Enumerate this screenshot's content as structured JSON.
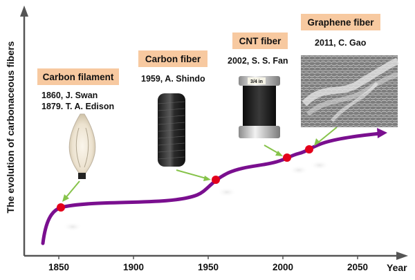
{
  "y_axis_title": "The evolution of carbonaceous fibers",
  "x_axis_title": "Year",
  "x_ticks": [
    "1850",
    "1900",
    "1950",
    "2000",
    "2050"
  ],
  "milestones": [
    {
      "box_label": "Carbon filament",
      "lines": [
        "1860, J. Swan",
        "1879. T. A. Edison"
      ],
      "image": "light-bulb"
    },
    {
      "box_label": "Carbon fiber",
      "lines": [
        "1959, A. Shindo"
      ],
      "image": "carbon-fiber-spool"
    },
    {
      "box_label": "CNT fiber",
      "lines": [
        "2002, S. S. Fan"
      ],
      "image": "cnt-fiber-spool",
      "spool_label": "3/4 in"
    },
    {
      "box_label": "Graphene fiber",
      "lines": [
        "2011, C. Gao"
      ],
      "image": "graphene-fiber-micrograph"
    }
  ],
  "colors": {
    "curve": "#7a0f8f",
    "dot": "#e3001b",
    "arrow": "#86c34a",
    "label_box": "#f7c9a0",
    "axis": "#555555"
  }
}
